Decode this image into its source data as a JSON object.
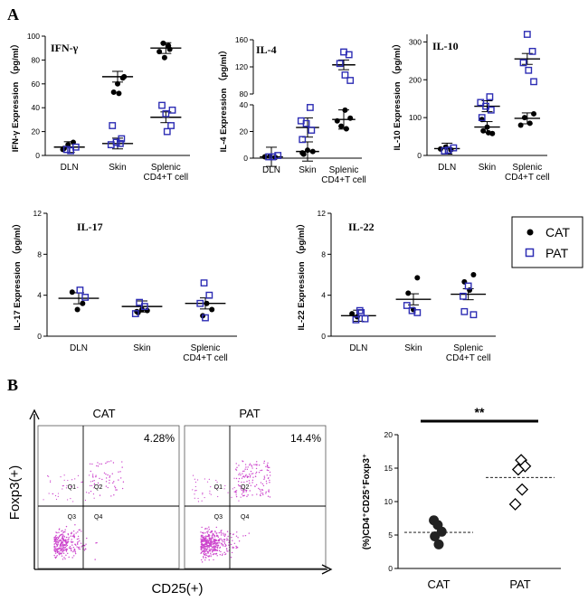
{
  "panels": {
    "a": "A",
    "b": "B"
  },
  "legend": {
    "cat": "CAT",
    "pat": "PAT"
  },
  "colors": {
    "pat_marker": "#2d2db4",
    "flow_dots": "#cc44cc",
    "axis": "#000000"
  },
  "chart_data": [
    {
      "type": "scatter",
      "title": "IFN-γ",
      "ylabel": "IFN-γ  Expression  （pg/ml）",
      "categories": [
        "DLN",
        "Skin",
        "Splenic\nCD4+T cell"
      ],
      "ylim": [
        0,
        100
      ],
      "yticks": [
        0,
        20,
        40,
        60,
        80,
        100
      ],
      "series": [
        {
          "name": "CAT",
          "points": [
            [
              0,
              5
            ],
            [
              0,
              9
            ],
            [
              0,
              11
            ],
            [
              0,
              6
            ],
            [
              1,
              60
            ],
            [
              1,
              65
            ],
            [
              1,
              53
            ],
            [
              1,
              52
            ],
            [
              1,
              66
            ],
            [
              2,
              94
            ],
            [
              2,
              92
            ],
            [
              2,
              87
            ],
            [
              2,
              82
            ],
            [
              2,
              89
            ]
          ]
        },
        {
          "name": "PAT",
          "points": [
            [
              0,
              4
            ],
            [
              0,
              7
            ],
            [
              0,
              5
            ],
            [
              1,
              10
            ],
            [
              1,
              9
            ],
            [
              1,
              11
            ],
            [
              1,
              14
            ],
            [
              1,
              25
            ],
            [
              2,
              35
            ],
            [
              2,
              25
            ],
            [
              2,
              42
            ],
            [
              2,
              20
            ],
            [
              2,
              38
            ]
          ]
        }
      ],
      "means": [
        7,
        66,
        90
      ],
      "means2": [
        null,
        10,
        32
      ]
    },
    {
      "type": "scatter",
      "title": "IL-4",
      "ylabel": "IL-4 Expression （pg/ml）",
      "categories": [
        "DLN",
        "Skin",
        "Splenic\nCD4+T cell"
      ],
      "axis_break": {
        "lower": [
          0,
          40
        ],
        "upper": [
          80,
          160
        ]
      },
      "yticks_lower": [
        0,
        20,
        40
      ],
      "yticks_upper": [
        80,
        120,
        160
      ],
      "series": [
        {
          "name": "CAT",
          "points": [
            [
              0,
              1
            ],
            [
              0,
              1.5
            ],
            [
              0,
              0.5
            ],
            [
              1,
              4
            ],
            [
              1,
              6
            ],
            [
              1,
              5
            ],
            [
              1,
              3
            ],
            [
              2,
              36
            ],
            [
              2,
              30
            ],
            [
              2,
              24
            ],
            [
              2,
              22
            ],
            [
              2,
              28
            ]
          ]
        },
        {
          "name": "PAT",
          "points": [
            [
              0,
              1
            ],
            [
              0,
              2
            ],
            [
              0,
              1
            ],
            [
              1,
              38
            ],
            [
              1,
              28
            ],
            [
              1,
              26
            ],
            [
              1,
              21
            ],
            [
              1,
              14
            ],
            [
              2,
              142
            ],
            [
              2,
              138
            ],
            [
              2,
              125
            ],
            [
              2,
              108
            ],
            [
              2,
              100
            ]
          ]
        }
      ],
      "means": [
        1,
        23,
        123
      ],
      "means2": [
        null,
        5,
        29
      ]
    },
    {
      "type": "scatter",
      "title": "IL-10",
      "ylabel": "IL-10 Expression （pg/ml）",
      "categories": [
        "DLN",
        "Skin",
        "Splenic\nCD4+T cell"
      ],
      "ylim": [
        0,
        320
      ],
      "yticks": [
        0,
        100,
        200,
        300
      ],
      "series": [
        {
          "name": "CAT",
          "points": [
            [
              0,
              17
            ],
            [
              0,
              22
            ],
            [
              0,
              15
            ],
            [
              1,
              95
            ],
            [
              1,
              75
            ],
            [
              1,
              58
            ],
            [
              1,
              65
            ],
            [
              1,
              60
            ],
            [
              2,
              110
            ],
            [
              2,
              100
            ],
            [
              2,
              85
            ],
            [
              2,
              80
            ]
          ]
        },
        {
          "name": "PAT",
          "points": [
            [
              0,
              14
            ],
            [
              0,
              20
            ],
            [
              0,
              12
            ],
            [
              1,
              155
            ],
            [
              1,
              140
            ],
            [
              1,
              130
            ],
            [
              1,
              120
            ],
            [
              1,
              100
            ],
            [
              2,
              320
            ],
            [
              2,
              275
            ],
            [
              2,
              245
            ],
            [
              2,
              225
            ],
            [
              2,
              195
            ]
          ]
        }
      ],
      "means": [
        18,
        130,
        255
      ],
      "means2": [
        null,
        75,
        98
      ]
    },
    {
      "type": "scatter",
      "title": "IL-17",
      "ylabel": "IL-17 Expression （pg/ml）",
      "categories": [
        "DLN",
        "Skin",
        "Splenic\nCD4+T cell"
      ],
      "ylim": [
        0,
        12
      ],
      "yticks": [
        0,
        4,
        8,
        12
      ],
      "series": [
        {
          "name": "CAT",
          "points": [
            [
              0,
              4.3
            ],
            [
              0,
              2.6
            ],
            [
              0,
              3.2
            ],
            [
              1,
              2.4
            ],
            [
              1,
              2.6
            ],
            [
              1,
              2.5
            ],
            [
              1,
              2.3
            ],
            [
              2,
              3.2
            ],
            [
              2,
              2.6
            ],
            [
              2,
              2.0
            ]
          ]
        },
        {
          "name": "PAT",
          "points": [
            [
              0,
              4.5
            ],
            [
              0,
              3.8
            ],
            [
              1,
              3.3
            ],
            [
              1,
              2.9
            ],
            [
              1,
              2.2
            ],
            [
              2,
              5.2
            ],
            [
              2,
              4.0
            ],
            [
              2,
              3.2
            ],
            [
              2,
              1.8
            ]
          ]
        }
      ],
      "means": [
        3.7,
        2.9,
        3.2
      ]
    },
    {
      "type": "scatter",
      "title": "IL-22",
      "ylabel": "IL-22 Expression （pg/ml）",
      "categories": [
        "DLN",
        "Skin",
        "Splenic\nCD4+T cell"
      ],
      "ylim": [
        0,
        12
      ],
      "yticks": [
        0,
        4,
        8,
        12
      ],
      "series": [
        {
          "name": "CAT",
          "points": [
            [
              0,
              2.2
            ],
            [
              0,
              1.9
            ],
            [
              1,
              5.7
            ],
            [
              1,
              4.2
            ],
            [
              1,
              2.6
            ],
            [
              2,
              6.0
            ],
            [
              2,
              5.3
            ],
            [
              2,
              4.5
            ]
          ]
        },
        {
          "name": "PAT",
          "points": [
            [
              0,
              2.5
            ],
            [
              0,
              1.7
            ],
            [
              0,
              1.6
            ],
            [
              0,
              2.3
            ],
            [
              1,
              3.0
            ],
            [
              1,
              2.5
            ],
            [
              1,
              2.3
            ],
            [
              2,
              3.9
            ],
            [
              2,
              4.9
            ],
            [
              2,
              2.1
            ],
            [
              2,
              2.4
            ]
          ]
        }
      ],
      "means": [
        2.0,
        3.6,
        4.1
      ]
    },
    {
      "type": "scatter",
      "title": "",
      "ylabel": "(%)CD4⁺CD25⁺Foxp3⁺",
      "categories": [
        "CAT",
        "PAT"
      ],
      "ylim": [
        0,
        20
      ],
      "yticks": [
        0,
        5,
        10,
        15,
        20
      ],
      "series": [
        {
          "name": "CAT",
          "marker": "circle",
          "points": [
            [
              0,
              7.2
            ],
            [
              0,
              6.5
            ],
            [
              0,
              5.5
            ],
            [
              0,
              4.8
            ],
            [
              0,
              3.6
            ]
          ]
        },
        {
          "name": "PAT",
          "marker": "diamond",
          "points": [
            [
              1,
              16.2
            ],
            [
              1,
              15.3
            ],
            [
              1,
              14.8
            ],
            [
              1,
              11.8
            ],
            [
              1,
              9.6
            ]
          ]
        }
      ],
      "means": [
        5.4,
        13.6
      ],
      "significance": "**"
    }
  ],
  "flow": {
    "plots": [
      {
        "title": "CAT",
        "percent": "4.28%",
        "quadrants": [
          "Q1",
          "Q2",
          "Q3",
          "Q4"
        ]
      },
      {
        "title": "PAT",
        "percent": "14.4%",
        "quadrants": [
          "Q1",
          "Q2",
          "Q3",
          "Q4"
        ]
      }
    ],
    "ylabel": "Foxp3(+)",
    "xlabel": "CD25(+)"
  }
}
